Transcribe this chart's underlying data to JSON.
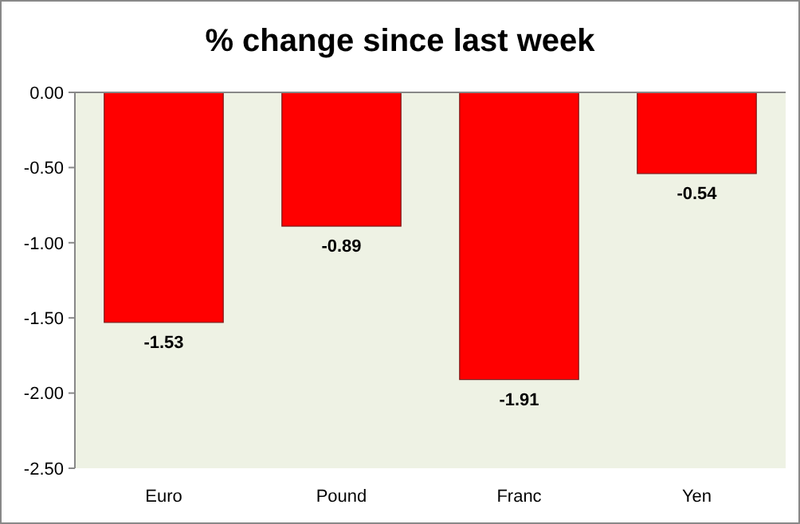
{
  "chart_data": {
    "type": "bar",
    "title": "% change since last week",
    "categories": [
      "Euro",
      "Pound",
      "Franc",
      "Yen"
    ],
    "values": [
      -1.53,
      -0.89,
      -1.91,
      -0.54
    ],
    "color": "#ff0000",
    "ylim": [
      -2.5,
      0
    ],
    "yticks": [
      {
        "value": 0,
        "label": "0.00"
      },
      {
        "value": -0.5,
        "label": "-0.50"
      },
      {
        "value": -1,
        "label": "-1.00"
      },
      {
        "value": -1.5,
        "label": "-1.50"
      },
      {
        "value": -2,
        "label": "-2.00"
      },
      {
        "value": -2.5,
        "label": "-2.50"
      }
    ],
    "data_labels": true,
    "grid": false
  }
}
